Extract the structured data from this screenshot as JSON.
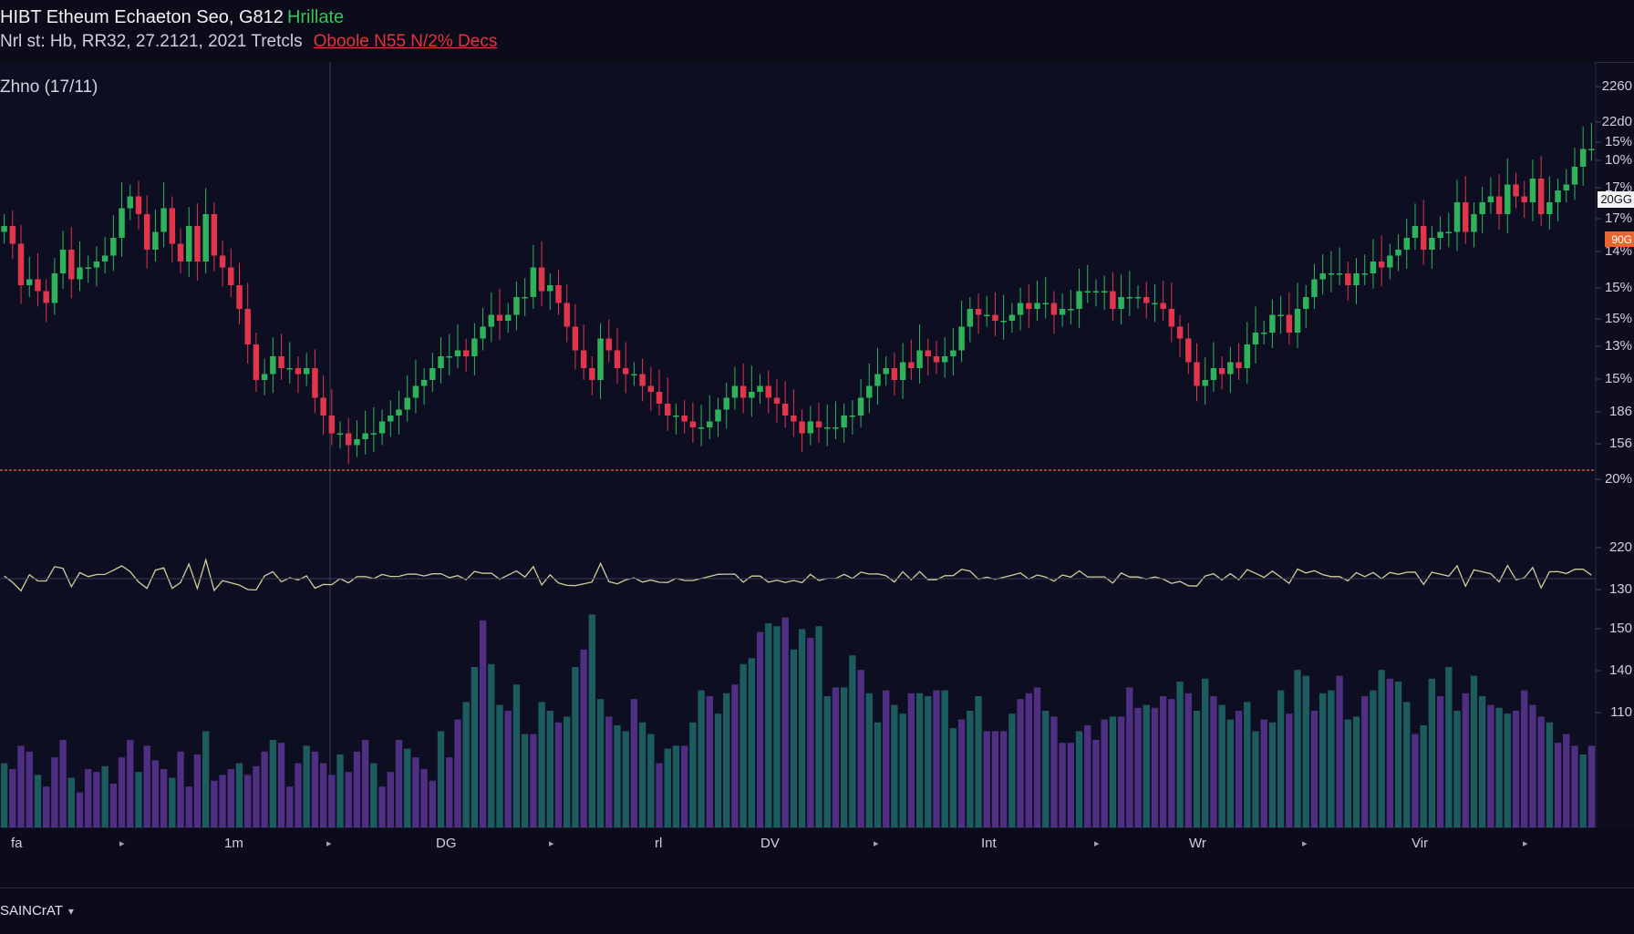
{
  "header": {
    "title": "HIBT Etheum Echaeton Seo, G812",
    "title_tag": "Hrillate",
    "meta": "Nrl st:  Hb, RR32,  27.2121,  2021  Tretcls",
    "alert": "Oboole N55 N/2% Decs"
  },
  "indicator": {
    "label": "Zhno (17/11)"
  },
  "footer": {
    "symbol": "SAINCrAT"
  },
  "colors": {
    "background": "#0d0d1e",
    "up": "#2fb35a",
    "down": "#e0354a",
    "volume_teal": "#1f6a6a",
    "volume_purple": "#5b3593",
    "price_line": "#d6543a",
    "price_tag": "#e8672f"
  },
  "icons": {
    "symbol_dropdown": "chevron-down-icon",
    "time_markers": "tick-marker-icon"
  },
  "price_axis": {
    "labels": [
      "2260",
      "22d0",
      "15%",
      "10%",
      "17%",
      "17%",
      "14%",
      "15%",
      "15%",
      "13%",
      "15%",
      "186",
      "156",
      "20%",
      "220",
      "130",
      "150",
      "140",
      "110"
    ],
    "current_price_label": "20GG",
    "orange_tag_label": "90G"
  },
  "time_axis": {
    "labels": [
      "fa",
      "1m",
      "DG",
      "rl",
      "DV",
      "Int",
      "Wr",
      "Vir"
    ]
  },
  "chart_data": {
    "type": "candlestick",
    "title": "HIBT Etheum Echaeton Seo, G812",
    "closes": [
      55,
      52,
      45,
      46,
      44,
      42,
      47,
      51,
      46,
      48,
      48,
      49,
      50,
      53,
      58,
      60,
      57,
      51,
      54,
      58,
      52,
      49,
      55,
      49,
      57,
      50,
      48,
      45,
      41,
      35,
      29,
      30,
      33,
      31,
      31,
      30,
      31,
      26,
      23,
      20,
      20,
      18,
      19,
      20,
      20,
      22,
      23,
      24,
      26,
      28,
      29,
      31,
      33,
      33,
      34,
      33,
      36,
      38,
      40,
      39,
      40,
      43,
      43,
      48,
      44,
      45,
      42,
      38,
      34,
      31,
      29,
      36,
      34,
      31,
      30,
      30,
      28,
      27,
      25,
      23,
      23,
      22,
      21,
      21,
      22,
      24,
      26,
      28,
      26,
      27,
      28,
      26,
      25,
      23,
      22,
      20,
      22,
      21,
      21,
      21,
      23,
      23,
      26,
      28,
      30,
      31,
      29,
      32,
      31,
      34,
      33,
      32,
      33,
      34,
      38,
      41,
      40,
      40,
      39,
      39,
      40,
      42,
      41,
      42,
      42,
      40,
      41,
      41,
      44,
      44,
      44,
      44,
      41,
      43,
      43,
      43,
      42,
      42,
      41,
      38,
      36,
      32,
      28,
      29,
      31,
      30,
      32,
      31,
      35,
      37,
      37,
      40,
      40,
      37,
      41,
      43,
      46,
      47,
      47,
      47,
      45,
      47,
      47,
      49,
      48,
      50,
      51,
      53,
      55,
      51,
      53,
      54,
      54,
      59,
      54,
      57,
      59,
      60,
      57,
      62,
      60,
      59,
      63,
      57,
      59,
      61,
      62,
      65,
      68,
      68
    ],
    "volumes": [
      22,
      20,
      28,
      26,
      18,
      14,
      24,
      30,
      17,
      12,
      20,
      19,
      21,
      15,
      24,
      30,
      19,
      28,
      23,
      20,
      17,
      26,
      14,
      25,
      33,
      16,
      18,
      20,
      22,
      18,
      21,
      26,
      30,
      29,
      14,
      22,
      28,
      26,
      22,
      18,
      25,
      19,
      26,
      30,
      22,
      14,
      19,
      30,
      27,
      24,
      20,
      16,
      33,
      24,
      37,
      43,
      55,
      71,
      56,
      42,
      40,
      49,
      32,
      32,
      43,
      40,
      36,
      38,
      55,
      61,
      73,
      44,
      38,
      35,
      33,
      44,
      36,
      32,
      22,
      27,
      28,
      28,
      36,
      47,
      45,
      39,
      46,
      49,
      56,
      58,
      67,
      70,
      69,
      72,
      61,
      68,
      65,
      69,
      45,
      48,
      48,
      59,
      54,
      46,
      36,
      47,
      42,
      39,
      46,
      46,
      45,
      47,
      47,
      34,
      37,
      40,
      45,
      33,
      33,
      33,
      39,
      44,
      46,
      48,
      40,
      38,
      29,
      29,
      33,
      35,
      30,
      37,
      38,
      38,
      48,
      41,
      42,
      41,
      45,
      44,
      50,
      46,
      40,
      51,
      45,
      42,
      37,
      40,
      43,
      33,
      37,
      36,
      47,
      39,
      54,
      52,
      40,
      46,
      47,
      52,
      37,
      38,
      45,
      47,
      54,
      51,
      50,
      43,
      32,
      35,
      51,
      45,
      55,
      40,
      46,
      52,
      45,
      42,
      41,
      39,
      40,
      47,
      42,
      38,
      36,
      29,
      32,
      28,
      25,
      28
    ],
    "reference_line": 186,
    "current_price": "20GG"
  }
}
